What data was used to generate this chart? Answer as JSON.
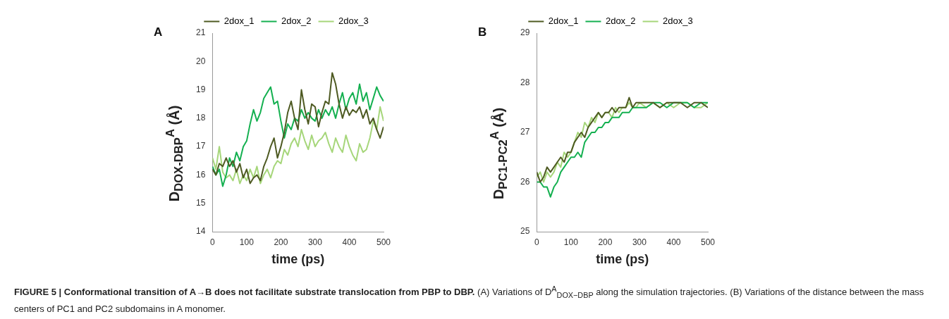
{
  "chart_data": [
    {
      "type": "line",
      "title": "A",
      "xlabel": "time (ps)",
      "ylabel": "D$_{DOX-DBP}$$^{A}$ (Å)",
      "legend": "top",
      "marker": "none",
      "line_style": "solid",
      "grid": false,
      "x": [
        0,
        10,
        20,
        30,
        40,
        50,
        60,
        70,
        80,
        90,
        100,
        110,
        120,
        130,
        140,
        150,
        160,
        170,
        180,
        190,
        200,
        210,
        220,
        230,
        240,
        250,
        260,
        270,
        280,
        290,
        300,
        310,
        320,
        330,
        340,
        350,
        360,
        370,
        380,
        390,
        400,
        410,
        420,
        430,
        440,
        450,
        460,
        470,
        480,
        490,
        500
      ],
      "xlim": [
        0,
        500
      ],
      "xticks": [
        0,
        100,
        200,
        300,
        400,
        500
      ],
      "ylim": [
        14,
        21
      ],
      "yticks": [
        14,
        15,
        16,
        17,
        18,
        19,
        20,
        21
      ],
      "series": [
        {
          "name": "2dox_1",
          "color": "#4e5a22",
          "values": [
            16.2,
            16.0,
            16.4,
            16.3,
            16.6,
            16.3,
            16.5,
            16.1,
            16.4,
            15.9,
            16.2,
            15.7,
            15.9,
            16.0,
            15.8,
            16.3,
            16.6,
            17.0,
            17.3,
            16.6,
            17.0,
            17.5,
            18.2,
            18.6,
            18.0,
            17.6,
            19.0,
            18.3,
            17.8,
            18.5,
            18.4,
            17.7,
            18.2,
            18.6,
            18.5,
            19.6,
            19.2,
            18.5,
            18.0,
            18.4,
            18.1,
            18.3,
            18.2,
            18.4,
            18.0,
            18.3,
            17.8,
            18.0,
            17.6,
            17.3,
            17.7
          ]
        },
        {
          "name": "2dox_2",
          "color": "#14b050",
          "values": [
            16.3,
            16.0,
            16.2,
            15.6,
            16.0,
            16.6,
            16.3,
            16.8,
            16.5,
            17.0,
            17.2,
            17.8,
            18.3,
            17.9,
            18.2,
            18.7,
            18.9,
            19.1,
            18.5,
            18.6,
            17.9,
            17.3,
            17.8,
            17.6,
            18.0,
            17.9,
            18.3,
            18.0,
            18.2,
            18.0,
            17.9,
            18.3,
            18.0,
            18.3,
            18.1,
            18.4,
            18.0,
            18.5,
            18.9,
            18.3,
            18.7,
            18.9,
            18.5,
            19.2,
            18.6,
            18.9,
            18.3,
            18.7,
            19.1,
            18.8,
            18.6
          ]
        },
        {
          "name": "2dox_3",
          "color": "#a6d67a",
          "values": [
            16.6,
            16.2,
            17.0,
            16.1,
            15.9,
            16.0,
            15.8,
            16.2,
            15.7,
            16.0,
            15.8,
            16.2,
            15.9,
            16.3,
            15.7,
            16.0,
            16.2,
            15.9,
            16.3,
            16.5,
            16.4,
            16.9,
            16.7,
            17.1,
            17.3,
            17.0,
            17.6,
            17.2,
            16.9,
            17.4,
            17.0,
            17.2,
            17.3,
            17.5,
            17.1,
            16.8,
            17.3,
            17.0,
            16.8,
            17.4,
            17.0,
            16.7,
            16.5,
            17.1,
            16.8,
            16.9,
            17.3,
            17.9,
            17.6,
            18.4,
            17.9
          ]
        }
      ]
    },
    {
      "type": "line",
      "title": "B",
      "xlabel": "time (ps)",
      "ylabel": "D$_{PC1-PC2}$$^{A}$ (Å)",
      "legend": "top",
      "marker": "none",
      "line_style": "solid",
      "grid": false,
      "x": [
        0,
        10,
        20,
        30,
        40,
        50,
        60,
        70,
        80,
        90,
        100,
        110,
        120,
        130,
        140,
        150,
        160,
        170,
        180,
        190,
        200,
        210,
        220,
        230,
        240,
        250,
        260,
        270,
        280,
        290,
        300,
        320,
        340,
        360,
        380,
        400,
        420,
        440,
        460,
        480,
        500
      ],
      "xlim": [
        0,
        500
      ],
      "xticks": [
        0,
        100,
        200,
        300,
        400,
        500
      ],
      "ylim": [
        25,
        29
      ],
      "yticks": [
        25,
        26,
        27,
        28,
        29
      ],
      "series": [
        {
          "name": "2dox_1",
          "color": "#4e5a22",
          "values": [
            26.2,
            26.0,
            26.1,
            26.3,
            26.2,
            26.3,
            26.4,
            26.5,
            26.4,
            26.6,
            26.6,
            26.8,
            26.9,
            27.0,
            26.9,
            27.1,
            27.2,
            27.3,
            27.4,
            27.3,
            27.4,
            27.4,
            27.5,
            27.4,
            27.5,
            27.5,
            27.5,
            27.7,
            27.5,
            27.6,
            27.6,
            27.6,
            27.6,
            27.5,
            27.6,
            27.6,
            27.6,
            27.5,
            27.6,
            27.6,
            27.5
          ]
        },
        {
          "name": "2dox_2",
          "color": "#14b050",
          "values": [
            26.0,
            26.0,
            25.9,
            25.9,
            25.7,
            25.9,
            26.0,
            26.2,
            26.3,
            26.4,
            26.5,
            26.5,
            26.6,
            26.5,
            26.8,
            26.9,
            27.0,
            27.0,
            27.1,
            27.1,
            27.2,
            27.2,
            27.3,
            27.3,
            27.3,
            27.4,
            27.4,
            27.4,
            27.5,
            27.5,
            27.5,
            27.5,
            27.6,
            27.6,
            27.5,
            27.6,
            27.6,
            27.6,
            27.5,
            27.6,
            27.6
          ]
        },
        {
          "name": "2dox_3",
          "color": "#a6d67a",
          "values": [
            26.1,
            26.2,
            26.0,
            26.2,
            26.1,
            26.2,
            26.4,
            26.3,
            26.6,
            26.5,
            26.6,
            26.8,
            27.0,
            26.9,
            27.2,
            27.1,
            27.3,
            27.2,
            27.4,
            27.3,
            27.4,
            27.4,
            27.3,
            27.5,
            27.4,
            27.5,
            27.5,
            27.6,
            27.5,
            27.5,
            27.6,
            27.5,
            27.6,
            27.5,
            27.6,
            27.5,
            27.6,
            27.6,
            27.5,
            27.5,
            27.6
          ]
        }
      ]
    },
    {
      "type": "other",
      "annotations": [
        "FIGURE 5 | Conformational transition of A→B does not facilitate substrate translocation from PBP to DBP.",
        "(A) Variations of D$^{A}$$_{DOX−DBP}$ along the simulation trajectories.",
        "(B) Variations of the distance between the mass centers of PC1 and PC2 subdomains in A monomer."
      ]
    }
  ]
}
